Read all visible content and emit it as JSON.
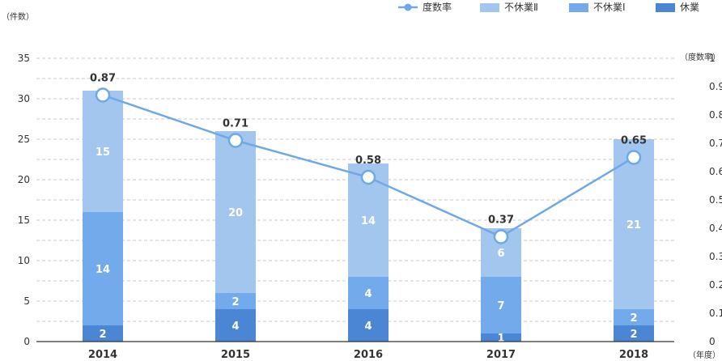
{
  "chart_data": {
    "type": "bar+line",
    "categories": [
      "2014",
      "2015",
      "2016",
      "2017",
      "2018"
    ],
    "stacked_series": [
      {
        "name": "休業",
        "color": "#4a86d4",
        "values": [
          2,
          4,
          4,
          1,
          2
        ]
      },
      {
        "name": "不休業Ⅰ",
        "color": "#73aaeb",
        "values": [
          14,
          2,
          4,
          7,
          2
        ]
      },
      {
        "name": "不休業Ⅱ",
        "color": "#a3c6ee",
        "values": [
          15,
          20,
          14,
          6,
          21
        ]
      }
    ],
    "line_series": {
      "name": "度数率",
      "color": "#6ea8e6",
      "values": [
        0.87,
        0.71,
        0.58,
        0.37,
        0.65
      ],
      "labels": [
        "0.87",
        "0.71",
        "0.58",
        "0.37",
        "0.65"
      ]
    },
    "left_axis": {
      "label": "（件数）",
      "ylim": [
        0,
        35
      ],
      "ticks": [
        "0",
        "5",
        "10",
        "15",
        "20",
        "25",
        "30",
        "35"
      ]
    },
    "right_axis": {
      "label": "（度数率）",
      "ylim": [
        0,
        1
      ],
      "ticks": [
        "0",
        "0.1",
        "0.2",
        "0.3",
        "0.4",
        "0.5",
        "0.6",
        "0.7",
        "0.8",
        "0.9",
        "1"
      ]
    },
    "x_axis": {
      "unit": "（年度）"
    },
    "legend": {
      "placement": "top-right",
      "items": [
        "度数率",
        "不休業Ⅱ",
        "不休業Ⅰ",
        "休業"
      ]
    },
    "grid": "dashed horizontal"
  }
}
